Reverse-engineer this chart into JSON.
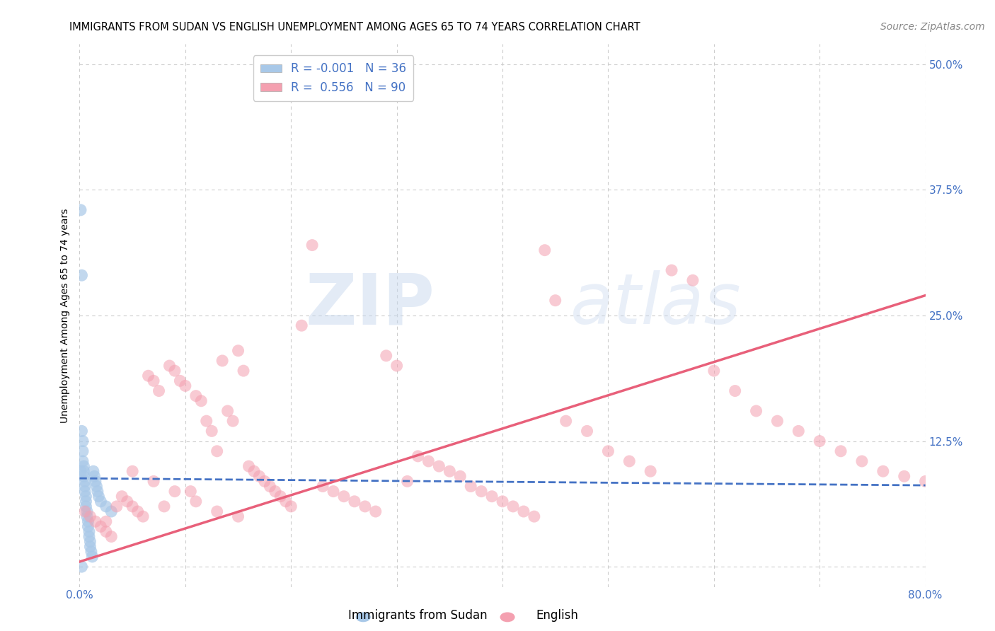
{
  "title": "IMMIGRANTS FROM SUDAN VS ENGLISH UNEMPLOYMENT AMONG AGES 65 TO 74 YEARS CORRELATION CHART",
  "source": "Source: ZipAtlas.com",
  "ylabel": "Unemployment Among Ages 65 to 74 years",
  "xlim": [
    0.0,
    0.8
  ],
  "ylim": [
    -0.02,
    0.52
  ],
  "xticks": [
    0.0,
    0.1,
    0.2,
    0.3,
    0.4,
    0.5,
    0.6,
    0.7,
    0.8
  ],
  "xticklabels": [
    "0.0%",
    "",
    "",
    "",
    "",
    "",
    "",
    "",
    "80.0%"
  ],
  "yticks_right": [
    0.5,
    0.375,
    0.25,
    0.125
  ],
  "ytick_labels_right": [
    "50.0%",
    "37.5%",
    "25.0%",
    "12.5%"
  ],
  "grid_yticks": [
    0.5,
    0.375,
    0.25,
    0.125,
    0.0
  ],
  "grid_color": "#cccccc",
  "background_color": "#ffffff",
  "watermark_zip": "ZIP",
  "watermark_atlas": "atlas",
  "legend_line1": "R = -0.001   N = 36",
  "legend_line2": "R =  0.556   N = 90",
  "legend_label1": "Immigrants from Sudan",
  "legend_label2": "English",
  "color_blue": "#a8c8e8",
  "color_pink": "#f4a0b0",
  "color_blue_dark": "#4472c4",
  "color_pink_dark": "#e8607a",
  "sudan_x": [
    0.001,
    0.002,
    0.002,
    0.003,
    0.003,
    0.003,
    0.004,
    0.004,
    0.004,
    0.005,
    0.005,
    0.005,
    0.006,
    0.006,
    0.006,
    0.007,
    0.007,
    0.008,
    0.008,
    0.009,
    0.009,
    0.01,
    0.01,
    0.011,
    0.012,
    0.013,
    0.014,
    0.015,
    0.016,
    0.017,
    0.018,
    0.02,
    0.025,
    0.03,
    0.001,
    0.002
  ],
  "sudan_y": [
    0.355,
    0.29,
    0.135,
    0.125,
    0.115,
    0.105,
    0.1,
    0.095,
    0.09,
    0.085,
    0.08,
    0.075,
    0.07,
    0.065,
    0.06,
    0.055,
    0.05,
    0.045,
    0.04,
    0.035,
    0.03,
    0.025,
    0.02,
    0.015,
    0.01,
    0.095,
    0.09,
    0.085,
    0.08,
    0.075,
    0.07,
    0.065,
    0.06,
    0.055,
    0.095,
    0.0
  ],
  "english_x": [
    0.005,
    0.01,
    0.015,
    0.02,
    0.025,
    0.03,
    0.035,
    0.04,
    0.045,
    0.05,
    0.055,
    0.06,
    0.065,
    0.07,
    0.075,
    0.08,
    0.085,
    0.09,
    0.095,
    0.1,
    0.105,
    0.11,
    0.115,
    0.12,
    0.125,
    0.13,
    0.135,
    0.14,
    0.145,
    0.15,
    0.155,
    0.16,
    0.165,
    0.17,
    0.175,
    0.18,
    0.185,
    0.19,
    0.195,
    0.2,
    0.21,
    0.22,
    0.23,
    0.24,
    0.25,
    0.26,
    0.27,
    0.28,
    0.29,
    0.3,
    0.31,
    0.32,
    0.33,
    0.34,
    0.35,
    0.36,
    0.37,
    0.38,
    0.39,
    0.4,
    0.41,
    0.42,
    0.43,
    0.44,
    0.45,
    0.46,
    0.48,
    0.5,
    0.52,
    0.54,
    0.56,
    0.58,
    0.6,
    0.62,
    0.64,
    0.66,
    0.68,
    0.7,
    0.72,
    0.74,
    0.76,
    0.78,
    0.8,
    0.025,
    0.05,
    0.07,
    0.09,
    0.11,
    0.13,
    0.15
  ],
  "english_y": [
    0.055,
    0.05,
    0.045,
    0.04,
    0.035,
    0.03,
    0.06,
    0.07,
    0.065,
    0.06,
    0.055,
    0.05,
    0.19,
    0.185,
    0.175,
    0.06,
    0.2,
    0.195,
    0.185,
    0.18,
    0.075,
    0.17,
    0.165,
    0.145,
    0.135,
    0.115,
    0.205,
    0.155,
    0.145,
    0.215,
    0.195,
    0.1,
    0.095,
    0.09,
    0.085,
    0.08,
    0.075,
    0.07,
    0.065,
    0.06,
    0.24,
    0.32,
    0.08,
    0.075,
    0.07,
    0.065,
    0.06,
    0.055,
    0.21,
    0.2,
    0.085,
    0.11,
    0.105,
    0.1,
    0.095,
    0.09,
    0.08,
    0.075,
    0.07,
    0.065,
    0.06,
    0.055,
    0.05,
    0.315,
    0.265,
    0.145,
    0.135,
    0.115,
    0.105,
    0.095,
    0.295,
    0.285,
    0.195,
    0.175,
    0.155,
    0.145,
    0.135,
    0.125,
    0.115,
    0.105,
    0.095,
    0.09,
    0.085,
    0.045,
    0.095,
    0.085,
    0.075,
    0.065,
    0.055,
    0.05
  ],
  "sudan_trend_x": [
    0.0,
    0.8
  ],
  "sudan_trend_y": [
    0.088,
    0.081
  ],
  "english_trend_x": [
    0.0,
    0.8
  ],
  "english_trend_y": [
    0.005,
    0.27
  ],
  "title_fontsize": 10.5,
  "axis_label_fontsize": 10,
  "tick_fontsize": 11,
  "legend_fontsize": 12,
  "source_fontsize": 10
}
